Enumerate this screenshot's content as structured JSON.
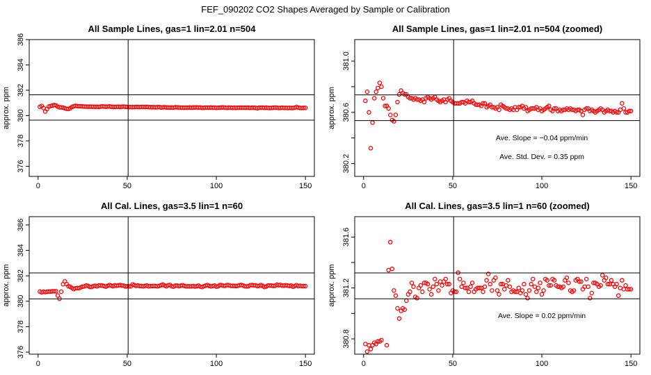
{
  "chart_data": {
    "type": "scatter",
    "title": "FEF_090202  CO2 Shapes Averaged by Sample or Calibration",
    "x": "index 1..150",
    "series": {
      "sample": [
        380.69,
        380.76,
        380.6,
        380.32,
        380.52,
        380.71,
        380.76,
        380.79,
        380.83,
        380.8,
        380.71,
        380.65,
        380.65,
        380.63,
        380.58,
        380.54,
        380.53,
        380.58,
        380.68,
        380.74,
        380.77,
        380.75,
        380.74,
        380.74,
        380.72,
        380.71,
        380.71,
        380.7,
        380.71,
        380.7,
        380.7,
        380.69,
        380.7,
        380.68,
        380.71,
        380.72,
        380.71,
        380.7,
        380.71,
        380.72,
        380.7,
        380.69,
        380.68,
        380.69,
        380.7,
        380.68,
        380.7,
        380.71,
        380.69,
        380.68,
        380.67,
        380.67,
        380.67,
        380.67,
        380.68,
        380.68,
        380.67,
        380.69,
        380.68,
        380.68,
        380.69,
        380.67,
        380.66,
        380.66,
        380.66,
        380.65,
        380.67,
        380.67,
        380.64,
        380.65,
        380.66,
        380.64,
        380.64,
        380.63,
        380.64,
        380.62,
        380.66,
        380.65,
        380.64,
        380.63,
        380.63,
        380.62,
        380.63,
        380.62,
        380.64,
        380.62,
        380.64,
        380.64,
        380.65,
        380.63,
        380.64,
        380.61,
        380.62,
        380.63,
        380.63,
        380.63,
        380.64,
        380.62,
        380.63,
        380.61,
        380.62,
        380.63,
        380.64,
        380.65,
        380.62,
        380.61,
        380.63,
        380.63,
        380.61,
        380.62,
        380.61,
        380.62,
        380.62,
        380.63,
        380.62,
        380.63,
        380.62,
        380.62,
        380.61,
        380.62,
        380.62,
        380.61,
        380.58,
        380.62,
        380.63,
        380.63,
        380.61,
        380.62,
        380.61,
        380.6,
        380.61,
        380.62,
        380.63,
        380.62,
        380.6,
        380.61,
        380.62,
        380.61,
        380.61,
        380.6,
        380.61,
        380.6,
        380.6,
        380.62,
        380.67,
        380.63,
        380.6,
        380.6,
        380.61,
        380.61
      ],
      "cal": [
        380.76,
        380.7,
        380.75,
        380.72,
        380.75,
        380.77,
        380.76,
        380.78,
        380.78,
        380.79,
        380.45,
        380.2,
        380.75,
        381.34,
        381.56,
        381.35,
        381.18,
        381.14,
        381.04,
        380.96,
        381.02,
        381.04,
        381.03,
        381.1,
        381.15,
        381.17,
        381.24,
        381.21,
        381.13,
        381.12,
        381.2,
        381.22,
        381.17,
        381.24,
        381.24,
        381.23,
        381.19,
        381.15,
        381.21,
        381.27,
        381.23,
        381.18,
        381.25,
        381.22,
        381.25,
        381.27,
        381.23,
        381.23,
        381.16,
        381.18,
        381.17,
        381.17,
        381.32,
        381.27,
        381.21,
        381.24,
        381.2,
        381.2,
        381.17,
        381.21,
        381.24,
        381.17,
        381.19,
        381.2,
        381.2,
        381.2,
        381.17,
        381.21,
        381.26,
        381.31,
        381.23,
        381.18,
        381.26,
        381.28,
        381.18,
        381.15,
        381.23,
        381.23,
        381.19,
        381.22,
        381.26,
        381.21,
        381.17,
        381.18,
        381.17,
        381.17,
        381.2,
        381.16,
        381.18,
        381.23,
        381.15,
        381.12,
        381.18,
        381.23,
        381.27,
        381.21,
        381.17,
        381.2,
        381.24,
        381.15,
        381.18,
        381.27,
        381.26,
        381.22,
        381.22,
        381.27,
        381.26,
        381.22,
        381.21,
        381.21,
        381.2,
        381.21,
        381.26,
        381.28,
        381.24,
        381.18,
        381.17,
        381.18,
        381.26,
        381.27,
        381.25,
        381.25,
        381.19,
        381.21,
        381.27,
        381.21,
        381.12,
        381.16,
        381.24,
        381.24,
        381.23,
        381.21,
        381.22,
        381.3,
        381.26,
        381.28,
        381.23,
        381.23,
        381.26,
        381.23,
        381.21,
        381.23,
        381.14,
        381.2,
        381.26,
        381.19,
        381.22,
        381.19,
        381.19,
        381.19
      ]
    },
    "panels": [
      {
        "title": "All Sample Lines, gas=1 lin=2.01 n=504",
        "series": "sample",
        "ylabel": "approx. ppm",
        "xlim": [
          -5,
          155
        ],
        "ylim": [
          375.2,
          386.0
        ],
        "xticks": [
          "0",
          "50",
          "100",
          "150"
        ],
        "yticks": [
          376,
          378,
          380,
          382,
          384,
          386
        ],
        "ytick_labels": [
          "376",
          "378",
          "380",
          "382",
          "384",
          "386"
        ],
        "vline": 50.5,
        "hlines": [
          379.64,
          381.64
        ],
        "annotations": []
      },
      {
        "title": "All Sample Lines, gas=1 lin=2.01 n=504 (zoomed)",
        "series": "sample",
        "ylabel": "approx. ppm",
        "xlim": [
          -5,
          155
        ],
        "ylim": [
          380.1,
          381.168
        ],
        "xticks": [
          "0",
          "50",
          "100",
          "150"
        ],
        "yticks": [
          380.2,
          380.4,
          380.6,
          380.8,
          381.0
        ],
        "ytick_labels": [
          "380.2",
          "",
          "380.6",
          "",
          "381.0"
        ],
        "vline": 50.5,
        "hlines": [
          380.536,
          380.736
        ],
        "annotations": [
          "Ave. Slope =  −0.04  ppm/min",
          "Ave. Std. Dev. = 0.35  ppm"
        ]
      },
      {
        "title": "All Cal. Lines, gas=3.5 lin=1 n=60",
        "series": "cal",
        "ylabel": "approx. ppm",
        "xlim": [
          -5,
          155
        ],
        "ylim": [
          375.84,
          386.65
        ],
        "xticks": [
          "0",
          "50",
          "100",
          "150"
        ],
        "yticks": [
          376,
          378,
          380,
          382,
          384,
          386
        ],
        "ytick_labels": [
          "376",
          "378",
          "380",
          "382",
          "384",
          "386"
        ],
        "vline": 50.5,
        "hlines": [
          380.19,
          382.23
        ],
        "annotations": []
      },
      {
        "title": "All Cal. Lines, gas=3.5 lin=1 n=60 (zoomed)",
        "series": "cal",
        "ylabel": "approx. ppm",
        "xlim": [
          -5,
          155
        ],
        "ylim": [
          380.68,
          381.76
        ],
        "xticks": [
          "0",
          "50",
          "100",
          "150"
        ],
        "yticks": [
          380.8,
          381.0,
          381.2,
          381.4,
          381.6
        ],
        "ytick_labels": [
          "380.8",
          "",
          "381.2",
          "",
          "381.6"
        ],
        "vline": 50.5,
        "hlines": [
          381.115,
          381.318
        ],
        "annotations": [
          "Ave. Slope =  0.02  ppm/min"
        ]
      }
    ],
    "point_color": "#ff0000",
    "grid": false,
    "legend": "none"
  }
}
